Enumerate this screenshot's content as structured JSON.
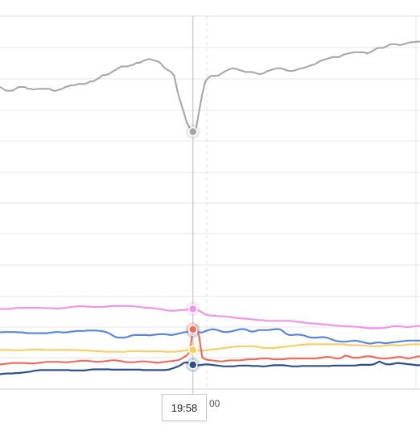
{
  "chart_data": {
    "type": "line",
    "title": "",
    "xlabel": "",
    "ylabel": "",
    "x_tick_labels": [
      "00"
    ],
    "crosshair_label": "19:58",
    "grid": true,
    "legend": "none",
    "ylim": [
      0,
      100
    ],
    "hovered_index": 62,
    "x": [
      0,
      1,
      2,
      3,
      4,
      5,
      6,
      7,
      8,
      9,
      10,
      11,
      12,
      13,
      14,
      15,
      16,
      17,
      18,
      19,
      20,
      21,
      22,
      23,
      24,
      25,
      26,
      27,
      28,
      29,
      30,
      31,
      32,
      33,
      34,
      35,
      36,
      37,
      38,
      39,
      40,
      41,
      42,
      43,
      44,
      45,
      46,
      47,
      48,
      49,
      50,
      51,
      52,
      53,
      54,
      55,
      56,
      57,
      58,
      59,
      60,
      61,
      62,
      63,
      64,
      65,
      66,
      67,
      68,
      69,
      70,
      71,
      72,
      73,
      74,
      75,
      76,
      77,
      78,
      79,
      80,
      81,
      82,
      83,
      84,
      85,
      86,
      87,
      88,
      89,
      90,
      91,
      92,
      93,
      94,
      95,
      96,
      97,
      98,
      99,
      100,
      101,
      102,
      103,
      104,
      105,
      106,
      107,
      108,
      109,
      110,
      111,
      112,
      113,
      114,
      115,
      116,
      117,
      118,
      119,
      120,
      121,
      122,
      123,
      124,
      125,
      126,
      127,
      128,
      129,
      130,
      131,
      132,
      133,
      134,
      135
    ],
    "series": [
      {
        "color": "#a4a4a4",
        "values": [
          81.0,
          80.5,
          80.0,
          80.0,
          80.0,
          80.5,
          81.0,
          81.0,
          81.0,
          80.5,
          80.5,
          80.3,
          80.5,
          80.5,
          80.5,
          80.5,
          80.5,
          80.0,
          80.0,
          80.3,
          80.5,
          81.0,
          81.2,
          81.5,
          81.5,
          81.8,
          81.8,
          81.8,
          82.0,
          82.5,
          82.5,
          83.0,
          83.5,
          84.2,
          84.2,
          84.5,
          85.0,
          85.5,
          86.0,
          86.5,
          86.5,
          86.5,
          86.8,
          87.0,
          87.5,
          87.5,
          88.0,
          88.3,
          88.5,
          88.3,
          88.0,
          87.8,
          87.0,
          86.0,
          85.5,
          85.0,
          84.0,
          80.0,
          77.0,
          74.5,
          71.5,
          70.0,
          69.0,
          69.8,
          74.5,
          79.0,
          82.5,
          83.5,
          84.0,
          84.0,
          84.0,
          84.5,
          85.0,
          85.5,
          85.8,
          86.0,
          85.8,
          85.5,
          85.3,
          85.0,
          85.0,
          85.0,
          84.8,
          84.5,
          84.5,
          84.8,
          85.3,
          85.5,
          85.8,
          86.0,
          86.0,
          85.8,
          85.5,
          85.3,
          85.3,
          85.5,
          85.8,
          86.0,
          86.2,
          86.5,
          86.8,
          87.0,
          87.5,
          88.0,
          88.3,
          88.5,
          88.8,
          89.0,
          89.0,
          89.0,
          89.5,
          89.8,
          90.0,
          90.2,
          90.3,
          90.3,
          90.3,
          90.3,
          90.0,
          90.3,
          90.8,
          91.3,
          91.5,
          91.5,
          91.8,
          92.3,
          92.5,
          92.5,
          92.3,
          92.3,
          92.5,
          92.8,
          93.0,
          93.0,
          93.1,
          93.2
        ]
      },
      {
        "color": "#ef95e8",
        "values": [
          21.5,
          21.5,
          21.5,
          21.5,
          21.6,
          21.7,
          21.8,
          21.8,
          21.8,
          21.8,
          21.8,
          21.8,
          21.8,
          21.8,
          21.7,
          21.7,
          21.7,
          21.6,
          21.6,
          21.6,
          21.7,
          21.8,
          21.9,
          22.0,
          22.1,
          22.2,
          22.2,
          22.2,
          22.1,
          22.1,
          22.0,
          22.0,
          22.0,
          22.0,
          22.1,
          22.2,
          22.3,
          22.3,
          22.3,
          22.3,
          22.3,
          22.3,
          22.3,
          22.2,
          22.1,
          22.0,
          21.9,
          21.8,
          21.8,
          21.7,
          21.6,
          21.5,
          21.4,
          21.2,
          21.1,
          21.0,
          21.0,
          21.1,
          21.2,
          21.2,
          21.3,
          21.5,
          21.5,
          21.5,
          21.0,
          20.5,
          20.0,
          19.8,
          19.7,
          19.7,
          19.6,
          19.5,
          19.5,
          19.4,
          19.3,
          19.2,
          19.1,
          19.0,
          18.9,
          18.9,
          18.8,
          18.7,
          18.6,
          18.5,
          18.5,
          18.4,
          18.3,
          18.3,
          18.3,
          18.3,
          18.3,
          18.3,
          18.3,
          18.3,
          18.2,
          18.1,
          18.0,
          17.9,
          17.8,
          17.7,
          17.6,
          17.6,
          17.5,
          17.4,
          17.3,
          17.3,
          17.2,
          17.1,
          17.0,
          17.0,
          16.9,
          16.8,
          16.8,
          16.8,
          16.7,
          16.7,
          16.6,
          16.5,
          16.4,
          16.3,
          16.3,
          16.3,
          16.3,
          16.4,
          16.5,
          16.6,
          16.8,
          16.9,
          16.9,
          16.8,
          16.7,
          16.6,
          16.7,
          16.8,
          16.9,
          17.0
        ]
      },
      {
        "color": "#5b88d6",
        "values": [
          15.2,
          15.3,
          15.3,
          15.3,
          15.3,
          15.3,
          15.2,
          15.2,
          15.1,
          15.0,
          15.0,
          15.0,
          15.0,
          15.0,
          15.0,
          15.0,
          15.1,
          15.2,
          15.3,
          15.3,
          15.2,
          15.2,
          15.3,
          15.4,
          15.5,
          15.6,
          15.6,
          15.6,
          15.7,
          15.7,
          15.7,
          15.7,
          15.6,
          15.5,
          15.3,
          15.0,
          14.5,
          14.0,
          13.8,
          13.8,
          13.8,
          14.0,
          14.3,
          14.5,
          14.5,
          14.5,
          14.5,
          14.5,
          14.4,
          14.5,
          14.6,
          14.7,
          14.7,
          14.7,
          14.6,
          14.5,
          14.6,
          14.8,
          15.0,
          15.2,
          15.3,
          15.5,
          15.5,
          15.4,
          15.2,
          15.2,
          15.5,
          15.8,
          16.0,
          16.0,
          15.8,
          15.5,
          15.3,
          15.3,
          15.4,
          15.6,
          15.8,
          16.0,
          16.1,
          16.0,
          15.6,
          15.4,
          15.5,
          15.8,
          15.8,
          15.8,
          15.8,
          15.9,
          16.0,
          16.1,
          16.0,
          15.5,
          14.8,
          14.5,
          14.5,
          14.6,
          14.6,
          14.5,
          14.3,
          14.0,
          13.8,
          13.8,
          13.8,
          13.9,
          13.9,
          13.8,
          13.5,
          13.2,
          12.9,
          12.8,
          12.7,
          12.7,
          12.8,
          12.9,
          13.0,
          12.9,
          12.7,
          12.5,
          12.3,
          12.2,
          12.3,
          12.5,
          12.5,
          12.4,
          12.3,
          12.4,
          12.5,
          12.6,
          12.7,
          12.8,
          12.9,
          13.0,
          13.0,
          13.0,
          13.0,
          13.0
        ]
      },
      {
        "color": "#f5cf6b",
        "values": [
          10.5,
          10.5,
          10.5,
          10.5,
          10.4,
          10.4,
          10.4,
          10.4,
          10.5,
          10.5,
          10.6,
          10.6,
          10.6,
          10.6,
          10.5,
          10.5,
          10.5,
          10.5,
          10.5,
          10.5,
          10.5,
          10.5,
          10.5,
          10.5,
          10.5,
          10.5,
          10.4,
          10.4,
          10.3,
          10.3,
          10.2,
          10.2,
          10.1,
          10.1,
          10.0,
          10.0,
          10.0,
          10.0,
          10.0,
          10.0,
          10.0,
          10.1,
          10.1,
          10.2,
          10.2,
          10.2,
          10.1,
          10.1,
          10.1,
          10.1,
          10.1,
          10.1,
          10.1,
          10.0,
          10.0,
          10.0,
          10.0,
          10.1,
          10.2,
          10.3,
          10.4,
          10.5,
          10.5,
          10.5,
          10.3,
          10.3,
          10.4,
          10.5,
          10.6,
          10.7,
          10.8,
          10.9,
          11.0,
          11.1,
          11.2,
          11.3,
          11.4,
          11.4,
          11.5,
          11.5,
          11.5,
          11.5,
          11.4,
          11.3,
          11.1,
          11.0,
          11.0,
          11.0,
          11.0,
          11.1,
          11.2,
          11.3,
          11.4,
          11.5,
          11.6,
          11.7,
          11.8,
          11.9,
          11.9,
          12.0,
          12.0,
          12.0,
          12.0,
          12.0,
          12.0,
          12.0,
          12.0,
          12.0,
          12.0,
          12.0,
          12.0,
          11.9,
          11.8,
          11.8,
          11.8,
          11.8,
          11.7,
          11.7,
          11.6,
          11.5,
          11.5,
          11.5,
          11.5,
          11.6,
          11.7,
          11.8,
          11.8,
          11.8,
          11.7,
          11.7,
          11.8,
          11.9,
          12.0,
          12.0,
          12.0,
          12.0
        ]
      },
      {
        "color": "#ea6e60",
        "values": [
          6.6,
          6.7,
          6.8,
          6.9,
          7.0,
          7.0,
          7.0,
          7.0,
          7.0,
          6.9,
          6.9,
          6.9,
          7.0,
          7.1,
          7.2,
          7.3,
          7.3,
          7.3,
          7.3,
          7.3,
          7.2,
          7.2,
          7.2,
          7.3,
          7.4,
          7.5,
          7.6,
          7.6,
          7.6,
          7.5,
          7.4,
          7.3,
          7.3,
          7.4,
          7.5,
          7.6,
          7.7,
          7.7,
          7.6,
          7.5,
          7.3,
          7.2,
          7.2,
          7.2,
          7.3,
          7.4,
          7.4,
          7.4,
          7.3,
          7.2,
          7.1,
          7.1,
          7.2,
          7.3,
          7.4,
          7.5,
          7.6,
          7.7,
          8.0,
          8.5,
          9.0,
          10.0,
          16.0,
          17.0,
          14.0,
          8.5,
          8.0,
          7.8,
          7.7,
          7.6,
          7.5,
          7.4,
          7.5,
          7.6,
          7.7,
          7.7,
          7.7,
          7.7,
          7.8,
          7.9,
          8.0,
          8.0,
          8.0,
          8.1,
          8.2,
          8.2,
          8.2,
          8.1,
          8.0,
          8.0,
          8.0,
          8.0,
          8.1,
          8.2,
          8.2,
          8.2,
          8.2,
          8.2,
          8.2,
          8.2,
          8.2,
          8.2,
          8.3,
          8.4,
          8.5,
          8.6,
          8.6,
          8.4,
          8.2,
          8.2,
          8.5,
          9.0,
          8.8,
          8.5,
          8.4,
          8.4,
          8.5,
          8.7,
          8.8,
          8.8,
          8.6,
          8.4,
          8.3,
          8.2,
          8.2,
          8.3,
          8.4,
          8.5,
          8.6,
          8.6,
          8.4,
          8.2,
          8.3,
          8.5,
          8.7,
          8.8
        ]
      },
      {
        "color": "#2f4f8c",
        "values": [
          4.0,
          4.1,
          4.2,
          4.2,
          4.2,
          4.3,
          4.3,
          4.4,
          4.5,
          4.6,
          4.7,
          4.9,
          5.0,
          5.1,
          5.1,
          5.1,
          5.1,
          5.1,
          5.1,
          5.1,
          5.1,
          5.1,
          5.1,
          5.0,
          5.0,
          5.0,
          5.0,
          5.0,
          5.1,
          5.2,
          5.3,
          5.3,
          5.3,
          5.3,
          5.3,
          5.3,
          5.2,
          5.2,
          5.2,
          5.2,
          5.2,
          5.2,
          5.2,
          5.2,
          5.2,
          5.2,
          5.1,
          5.1,
          5.1,
          5.1,
          5.1,
          5.1,
          5.1,
          5.1,
          5.2,
          5.4,
          5.7,
          6.0,
          6.4,
          7.0,
          7.2,
          6.8,
          6.5,
          6.4,
          6.4,
          6.5,
          6.6,
          6.6,
          6.5,
          6.4,
          6.3,
          6.2,
          6.1,
          6.1,
          6.1,
          6.1,
          6.2,
          6.3,
          6.3,
          6.3,
          6.3,
          6.2,
          6.2,
          6.2,
          6.1,
          6.1,
          6.2,
          6.3,
          6.4,
          6.4,
          6.4,
          6.4,
          6.3,
          6.2,
          6.1,
          6.1,
          6.1,
          6.2,
          6.2,
          6.2,
          6.2,
          6.2,
          6.2,
          6.2,
          6.2,
          6.2,
          6.2,
          6.3,
          6.3,
          6.3,
          6.3,
          6.3,
          6.3,
          6.3,
          6.3,
          6.4,
          6.5,
          6.5,
          6.5,
          6.5,
          6.6,
          7.0,
          7.4,
          7.0,
          6.7,
          6.6,
          6.7,
          6.9,
          7.0,
          6.9,
          6.8,
          6.7,
          6.6,
          6.5,
          6.4,
          6.4
        ]
      }
    ]
  }
}
